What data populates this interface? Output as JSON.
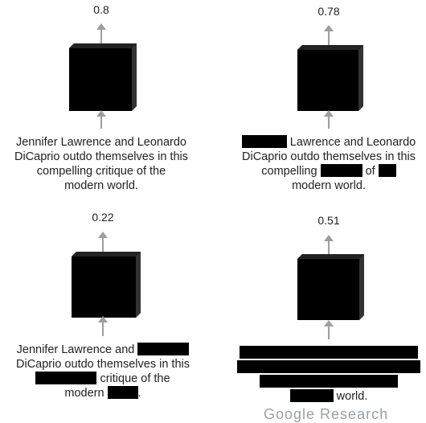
{
  "panels": [
    {
      "score": "0.8",
      "caption_lines": [
        [
          {
            "t": "Jennifer Lawrence and Leonardo"
          }
        ],
        [
          {
            "t": "DiCaprio outdo themselves in this"
          }
        ],
        [
          {
            "t": "compelling critique of the"
          }
        ],
        [
          {
            "t": "modern world."
          }
        ]
      ]
    },
    {
      "score": "0.78",
      "caption_lines": [
        [
          {
            "r": 56
          },
          {
            "t": " Lawrence and Leonardo"
          }
        ],
        [
          {
            "t": "DiCaprio outdo themselves in this"
          }
        ],
        [
          {
            "t": "compelling "
          },
          {
            "r": 52
          },
          {
            "t": " of "
          },
          {
            "r": 22
          }
        ],
        [
          {
            "t": "modern world."
          }
        ]
      ]
    },
    {
      "score": "0.22",
      "caption_lines": [
        [
          {
            "t": "Jennifer Lawrence and "
          },
          {
            "r": 64
          }
        ],
        [
          {
            "t": "DiCaprio outdo themselves in this"
          }
        ],
        [
          {
            "r": 76
          },
          {
            "t": " critique of the"
          }
        ],
        [
          {
            "t": "modern "
          },
          {
            "r": 38
          },
          {
            "t": "."
          }
        ]
      ]
    },
    {
      "score": "0.51",
      "caption_lines": [
        [
          {
            "r": 222
          }
        ],
        [
          {
            "r": 228
          }
        ],
        [
          {
            "r": 172
          }
        ],
        [
          {
            "r": 54
          },
          {
            "t": " world."
          }
        ]
      ]
    }
  ],
  "footer_fragment": "Google Research"
}
